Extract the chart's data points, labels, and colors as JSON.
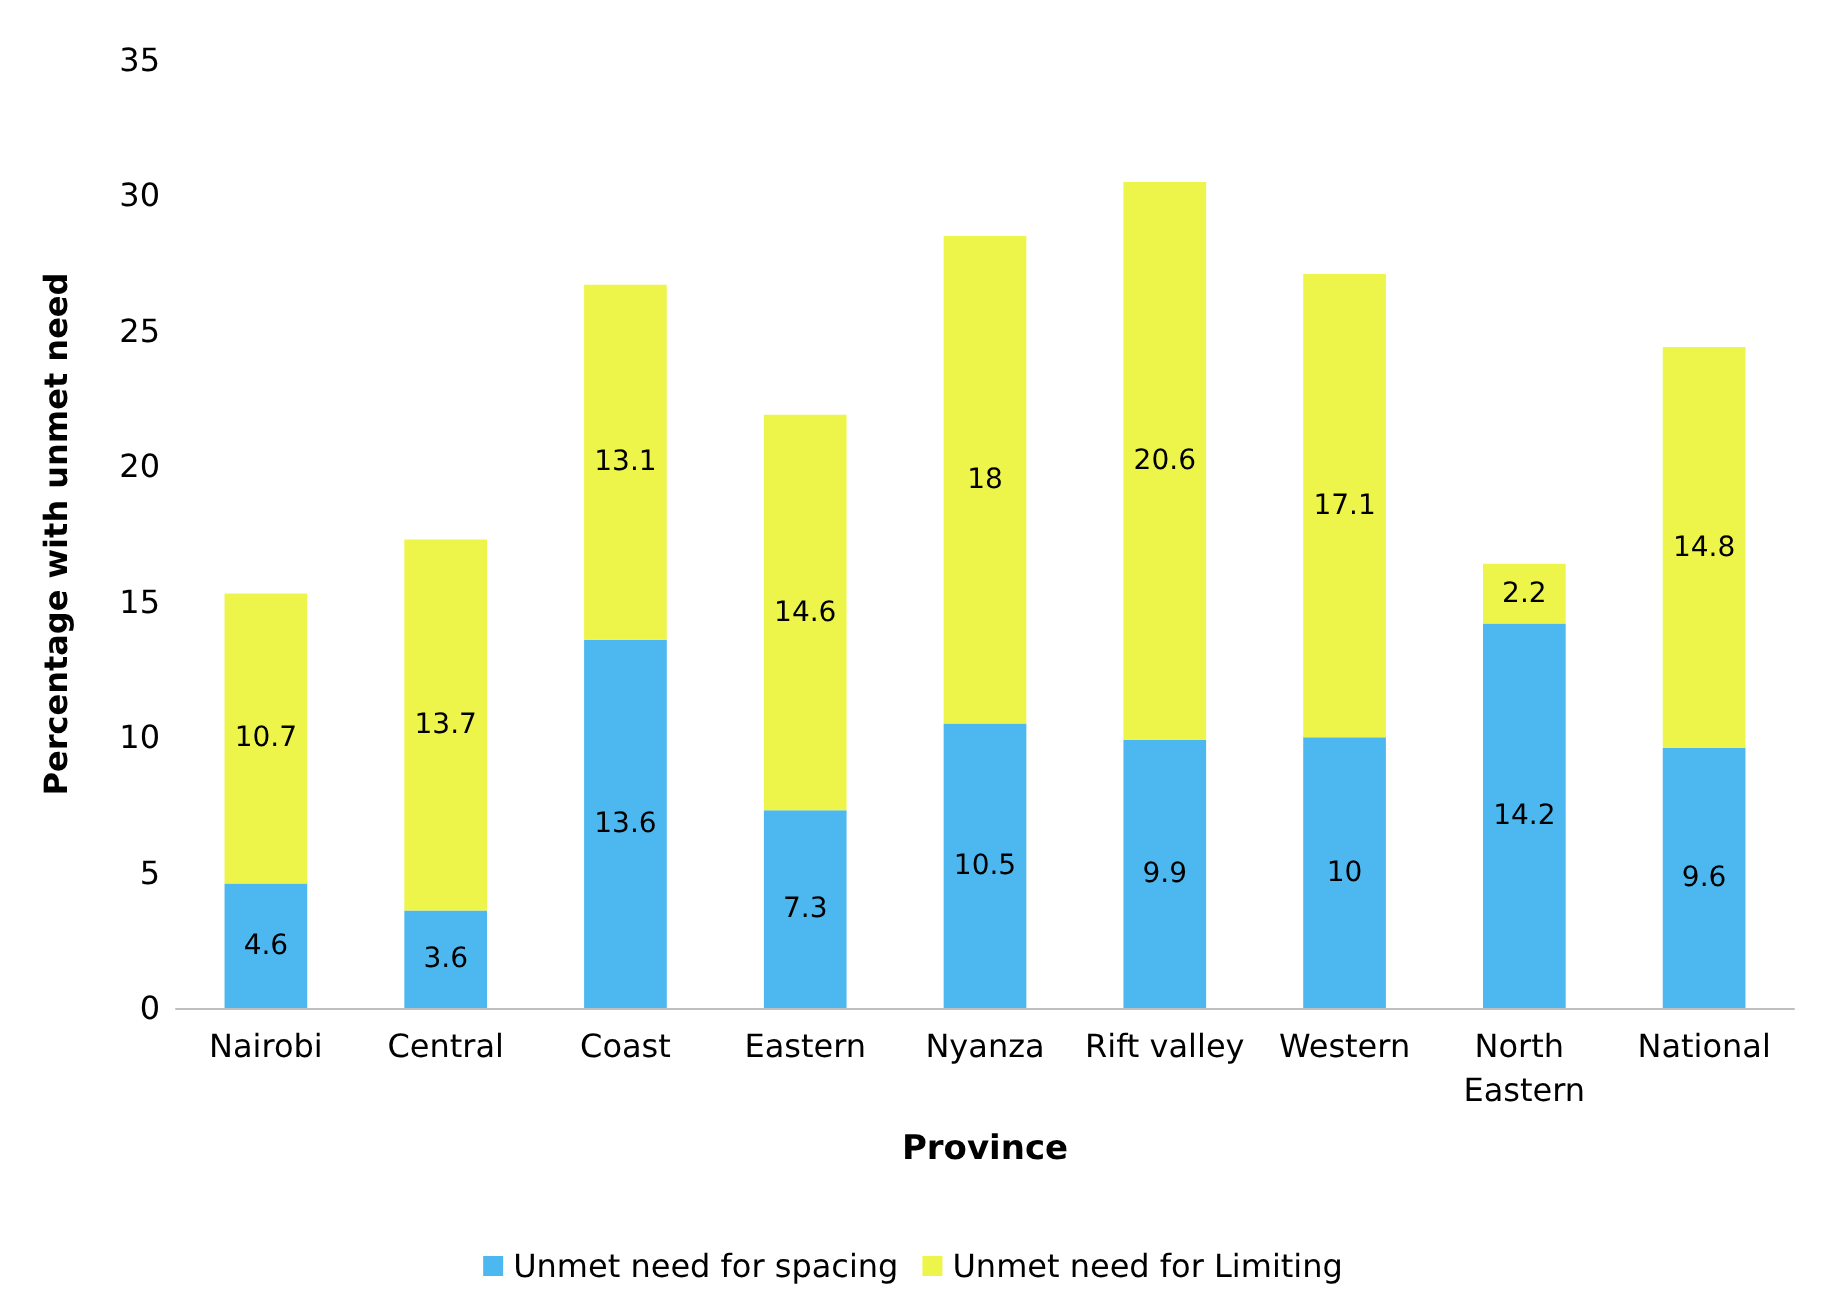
{
  "chart_data": {
    "type": "bar",
    "stacked": true,
    "xlabel": "Province",
    "ylabel": "Percentage with unmet need",
    "categories": [
      "Nairobi",
      "Central",
      "Coast",
      "Eastern",
      "Nyanza",
      "Rift valley",
      "Western",
      "North Eastern",
      "National"
    ],
    "series": [
      {
        "name": "Unmet need for spacing",
        "color": "#4db8f0",
        "values": [
          4.6,
          3.6,
          13.6,
          7.3,
          10.5,
          9.9,
          10,
          14.2,
          9.6
        ]
      },
      {
        "name": "Unmet need for Limiting",
        "color": "#eef54a",
        "values": [
          10.7,
          13.7,
          13.1,
          14.6,
          18,
          20.6,
          17.1,
          2.2,
          14.8
        ]
      }
    ],
    "ylim": [
      0,
      35
    ],
    "yticks": [
      0,
      5,
      10,
      15,
      20,
      25,
      30,
      35
    ],
    "grid": false,
    "legend": "bottom",
    "data_labels": true
  }
}
